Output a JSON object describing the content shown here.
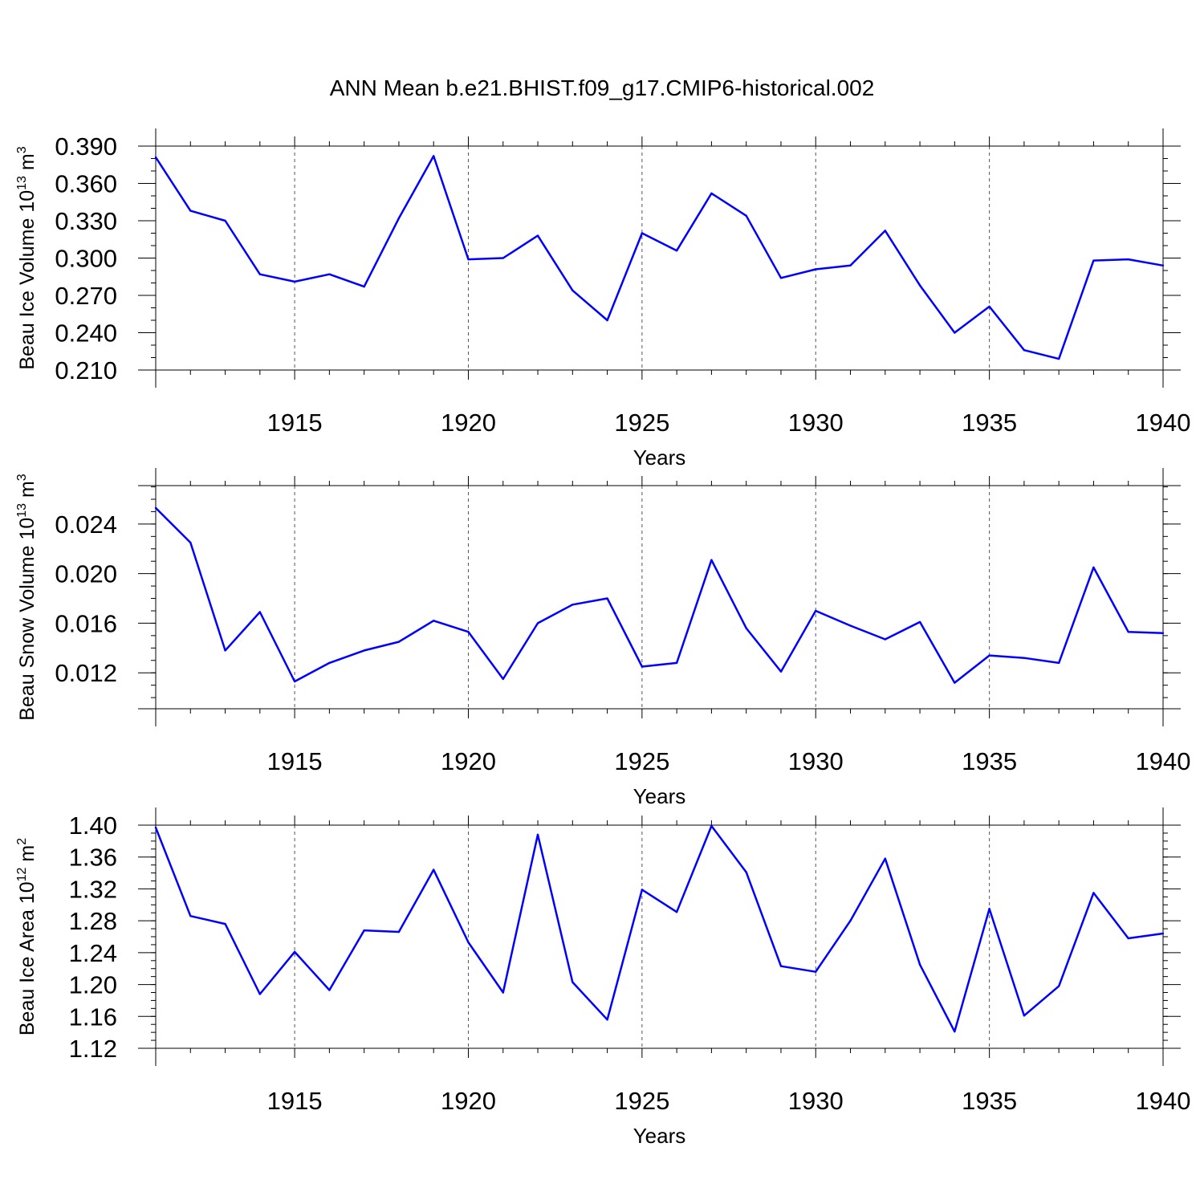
{
  "title": "ANN Mean b.e21.BHIST.f09_g17.CMIP6-historical.002",
  "line_color": "#0000ff",
  "chart_data": [
    {
      "type": "line",
      "id": "ice-volume",
      "ylabel_main": "Beau Ice Volume 10",
      "ylabel_exp": "13",
      "ylabel_unit": " m",
      "ylabel_unit_exp": "3",
      "xlabel": "Years",
      "xlim": [
        1911,
        1940
      ],
      "ylim": [
        0.21,
        0.39
      ],
      "yticks": [
        0.21,
        0.24,
        0.27,
        0.3,
        0.33,
        0.36,
        0.39
      ],
      "ytick_labels": [
        "0.210",
        "0.240",
        "0.270",
        "0.300",
        "0.330",
        "0.360",
        "0.390"
      ],
      "yminor_step": 0.01,
      "xticks": [
        1915,
        1920,
        1925,
        1930,
        1935,
        1940
      ],
      "xtick_labels": [
        "1915",
        "1920",
        "1925",
        "1930",
        "1935",
        "1940"
      ],
      "x": [
        1911,
        1912,
        1913,
        1914,
        1915,
        1916,
        1917,
        1918,
        1919,
        1920,
        1921,
        1922,
        1923,
        1924,
        1925,
        1926,
        1927,
        1928,
        1929,
        1930,
        1931,
        1932,
        1933,
        1934,
        1935,
        1936,
        1937,
        1938,
        1939,
        1940
      ],
      "values": [
        0.381,
        0.338,
        0.33,
        0.287,
        0.281,
        0.287,
        0.277,
        0.332,
        0.382,
        0.299,
        0.3,
        0.318,
        0.274,
        0.25,
        0.32,
        0.306,
        0.352,
        0.334,
        0.284,
        0.291,
        0.294,
        0.322,
        0.278,
        0.24,
        0.261,
        0.226,
        0.219,
        0.298,
        0.299,
        0.294
      ]
    },
    {
      "type": "line",
      "id": "snow-volume",
      "ylabel_main": "Beau Snow Volume 10",
      "ylabel_exp": "13",
      "ylabel_unit": " m",
      "ylabel_unit_exp": "3",
      "xlabel": "Years",
      "xlim": [
        1911,
        1940
      ],
      "ylim": [
        0.0091,
        0.0271
      ],
      "yticks": [
        0.012,
        0.016,
        0.02,
        0.024
      ],
      "ytick_labels": [
        "0.012",
        "0.016",
        "0.020",
        "0.024"
      ],
      "yminor_step": 0.001,
      "xticks": [
        1915,
        1920,
        1925,
        1930,
        1935,
        1940
      ],
      "xtick_labels": [
        "1915",
        "1920",
        "1925",
        "1930",
        "1935",
        "1940"
      ],
      "x": [
        1911,
        1912,
        1913,
        1914,
        1915,
        1916,
        1917,
        1918,
        1919,
        1920,
        1921,
        1922,
        1923,
        1924,
        1925,
        1926,
        1927,
        1928,
        1929,
        1930,
        1931,
        1932,
        1933,
        1934,
        1935,
        1936,
        1937,
        1938,
        1939,
        1940
      ],
      "values": [
        0.0253,
        0.0225,
        0.0138,
        0.0169,
        0.0113,
        0.0128,
        0.0138,
        0.0145,
        0.0162,
        0.0153,
        0.0115,
        0.016,
        0.0175,
        0.018,
        0.0125,
        0.0128,
        0.0211,
        0.0156,
        0.0121,
        0.017,
        0.0158,
        0.0147,
        0.0161,
        0.0112,
        0.0134,
        0.0132,
        0.0128,
        0.0205,
        0.0153,
        0.0152
      ]
    },
    {
      "type": "line",
      "id": "ice-area",
      "ylabel_main": "Beau Ice Area 10",
      "ylabel_exp": "12",
      "ylabel_unit": " m",
      "ylabel_unit_exp": "2",
      "xlabel": "Years",
      "xlim": [
        1911,
        1940
      ],
      "ylim": [
        1.12,
        1.4
      ],
      "yticks": [
        1.12,
        1.16,
        1.2,
        1.24,
        1.28,
        1.32,
        1.36,
        1.4
      ],
      "ytick_labels": [
        "1.12",
        "1.16",
        "1.20",
        "1.24",
        "1.28",
        "1.32",
        "1.36",
        "1.40"
      ],
      "yminor_step": 0.01,
      "xticks": [
        1915,
        1920,
        1925,
        1930,
        1935,
        1940
      ],
      "xtick_labels": [
        "1915",
        "1920",
        "1925",
        "1930",
        "1935",
        "1940"
      ],
      "x": [
        1911,
        1912,
        1913,
        1914,
        1915,
        1916,
        1917,
        1918,
        1919,
        1920,
        1921,
        1922,
        1923,
        1924,
        1925,
        1926,
        1927,
        1928,
        1929,
        1930,
        1931,
        1932,
        1933,
        1934,
        1935,
        1936,
        1937,
        1938,
        1939,
        1940
      ],
      "values": [
        1.397,
        1.286,
        1.276,
        1.188,
        1.241,
        1.193,
        1.268,
        1.266,
        1.344,
        1.253,
        1.19,
        1.388,
        1.203,
        1.156,
        1.319,
        1.291,
        1.399,
        1.341,
        1.223,
        1.216,
        1.28,
        1.358,
        1.225,
        1.141,
        1.295,
        1.161,
        1.198,
        1.315,
        1.258,
        1.264
      ]
    }
  ]
}
